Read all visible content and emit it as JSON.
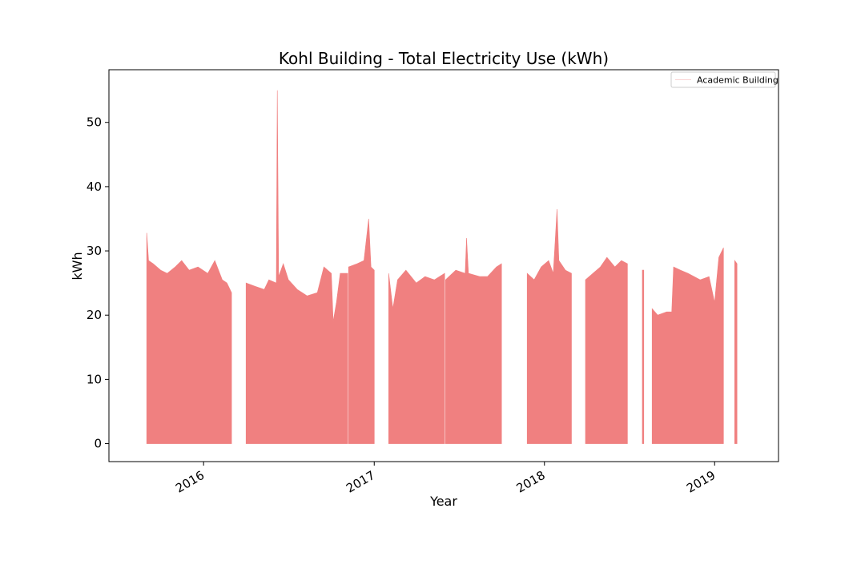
{
  "chart_data": {
    "type": "area",
    "title": "Kohl Building - Total Electricity Use (kWh)",
    "xlabel": "Year",
    "ylabel": "kWh",
    "xlim": [
      "2015-06-12",
      "2019-05-18"
    ],
    "ylim": [
      -2.8,
      58.2
    ],
    "yticks": [
      0,
      10,
      20,
      30,
      40,
      50
    ],
    "xticks": [
      {
        "label": "2016",
        "date": "2016-01-01"
      },
      {
        "label": "2017",
        "date": "2017-01-01"
      },
      {
        "label": "2018",
        "date": "2018-01-01"
      },
      {
        "label": "2019",
        "date": "2019-01-01"
      }
    ],
    "grid": false,
    "legend": {
      "position": "top-right",
      "entries": [
        "Academic Building"
      ]
    },
    "series": [
      {
        "name": "Academic Building",
        "color": "#f08080",
        "segments": [
          [
            [
              "2015-09-01",
              32.8
            ],
            [
              "2015-09-05",
              28.5
            ],
            [
              "2015-09-15",
              28.0
            ],
            [
              "2015-10-01",
              27.0
            ],
            [
              "2015-10-15",
              26.5
            ],
            [
              "2015-11-01",
              27.5
            ],
            [
              "2015-11-15",
              28.5
            ],
            [
              "2015-12-01",
              27.0
            ],
            [
              "2015-12-20",
              27.5
            ],
            [
              "2016-01-10",
              26.5
            ],
            [
              "2016-01-25",
              28.5
            ],
            [
              "2016-02-10",
              25.5
            ],
            [
              "2016-02-20",
              25.0
            ],
            [
              "2016-03-01",
              23.5
            ]
          ],
          [
            [
              "2016-04-01",
              25.0
            ],
            [
              "2016-04-20",
              24.5
            ],
            [
              "2016-05-10",
              24.0
            ],
            [
              "2016-05-20",
              25.5
            ],
            [
              "2016-06-05",
              25.0
            ],
            [
              "2016-06-07",
              55.0
            ],
            [
              "2016-06-10",
              26.0
            ],
            [
              "2016-06-20",
              28.0
            ],
            [
              "2016-07-01",
              25.5
            ],
            [
              "2016-07-20",
              24.0
            ],
            [
              "2016-08-10",
              23.0
            ],
            [
              "2016-09-01",
              23.5
            ],
            [
              "2016-09-15",
              27.5
            ],
            [
              "2016-10-01",
              26.5
            ],
            [
              "2016-10-05",
              19.0
            ],
            [
              "2016-10-12",
              22.0
            ],
            [
              "2016-10-20",
              26.5
            ],
            [
              "2016-11-05",
              26.5
            ]
          ],
          [
            [
              "2016-11-07",
              27.5
            ],
            [
              "2016-11-25",
              28.0
            ],
            [
              "2016-12-10",
              28.5
            ],
            [
              "2016-12-20",
              35.0
            ],
            [
              "2016-12-25",
              27.5
            ],
            [
              "2017-01-01",
              27.0
            ]
          ],
          [
            [
              "2017-02-01",
              26.5
            ],
            [
              "2017-02-10",
              21.0
            ],
            [
              "2017-02-20",
              25.5
            ],
            [
              "2017-03-10",
              27.0
            ],
            [
              "2017-04-01",
              25.0
            ],
            [
              "2017-04-20",
              26.0
            ],
            [
              "2017-05-10",
              25.5
            ],
            [
              "2017-06-01",
              26.5
            ]
          ],
          [
            [
              "2017-06-03",
              25.5
            ],
            [
              "2017-06-25",
              27.0
            ],
            [
              "2017-07-15",
              26.5
            ],
            [
              "2017-07-18",
              32.0
            ],
            [
              "2017-07-22",
              26.5
            ],
            [
              "2017-08-15",
              26.0
            ],
            [
              "2017-09-01",
              26.0
            ],
            [
              "2017-09-20",
              27.5
            ],
            [
              "2017-10-01",
              28.0
            ]
          ],
          [
            [
              "2017-11-25",
              26.5
            ],
            [
              "2017-12-10",
              25.5
            ],
            [
              "2017-12-25",
              27.5
            ],
            [
              "2018-01-10",
              28.5
            ],
            [
              "2018-01-20",
              26.5
            ],
            [
              "2018-01-28",
              36.5
            ],
            [
              "2018-02-01",
              28.5
            ],
            [
              "2018-02-15",
              27.0
            ],
            [
              "2018-02-28",
              26.5
            ]
          ],
          [
            [
              "2018-03-30",
              25.5
            ],
            [
              "2018-04-15",
              26.5
            ],
            [
              "2018-05-01",
              27.5
            ],
            [
              "2018-05-15",
              29.0
            ],
            [
              "2018-06-01",
              27.5
            ],
            [
              "2018-06-15",
              28.5
            ],
            [
              "2018-06-28",
              28.0
            ]
          ],
          [
            [
              "2018-07-30",
              27.0
            ],
            [
              "2018-08-02",
              27.0
            ]
          ],
          [
            [
              "2018-08-20",
              21.0
            ],
            [
              "2018-09-01",
              20.0
            ],
            [
              "2018-09-20",
              20.5
            ],
            [
              "2018-10-01",
              20.5
            ],
            [
              "2018-10-05",
              27.5
            ],
            [
              "2018-10-20",
              27.0
            ],
            [
              "2018-11-05",
              26.5
            ],
            [
              "2018-12-01",
              25.5
            ],
            [
              "2018-12-20",
              26.0
            ],
            [
              "2019-01-01",
              22.0
            ],
            [
              "2019-01-10",
              29.0
            ],
            [
              "2019-01-20",
              30.5
            ]
          ],
          [
            [
              "2019-02-13",
              28.5
            ],
            [
              "2019-02-18",
              28.0
            ]
          ]
        ]
      }
    ]
  }
}
